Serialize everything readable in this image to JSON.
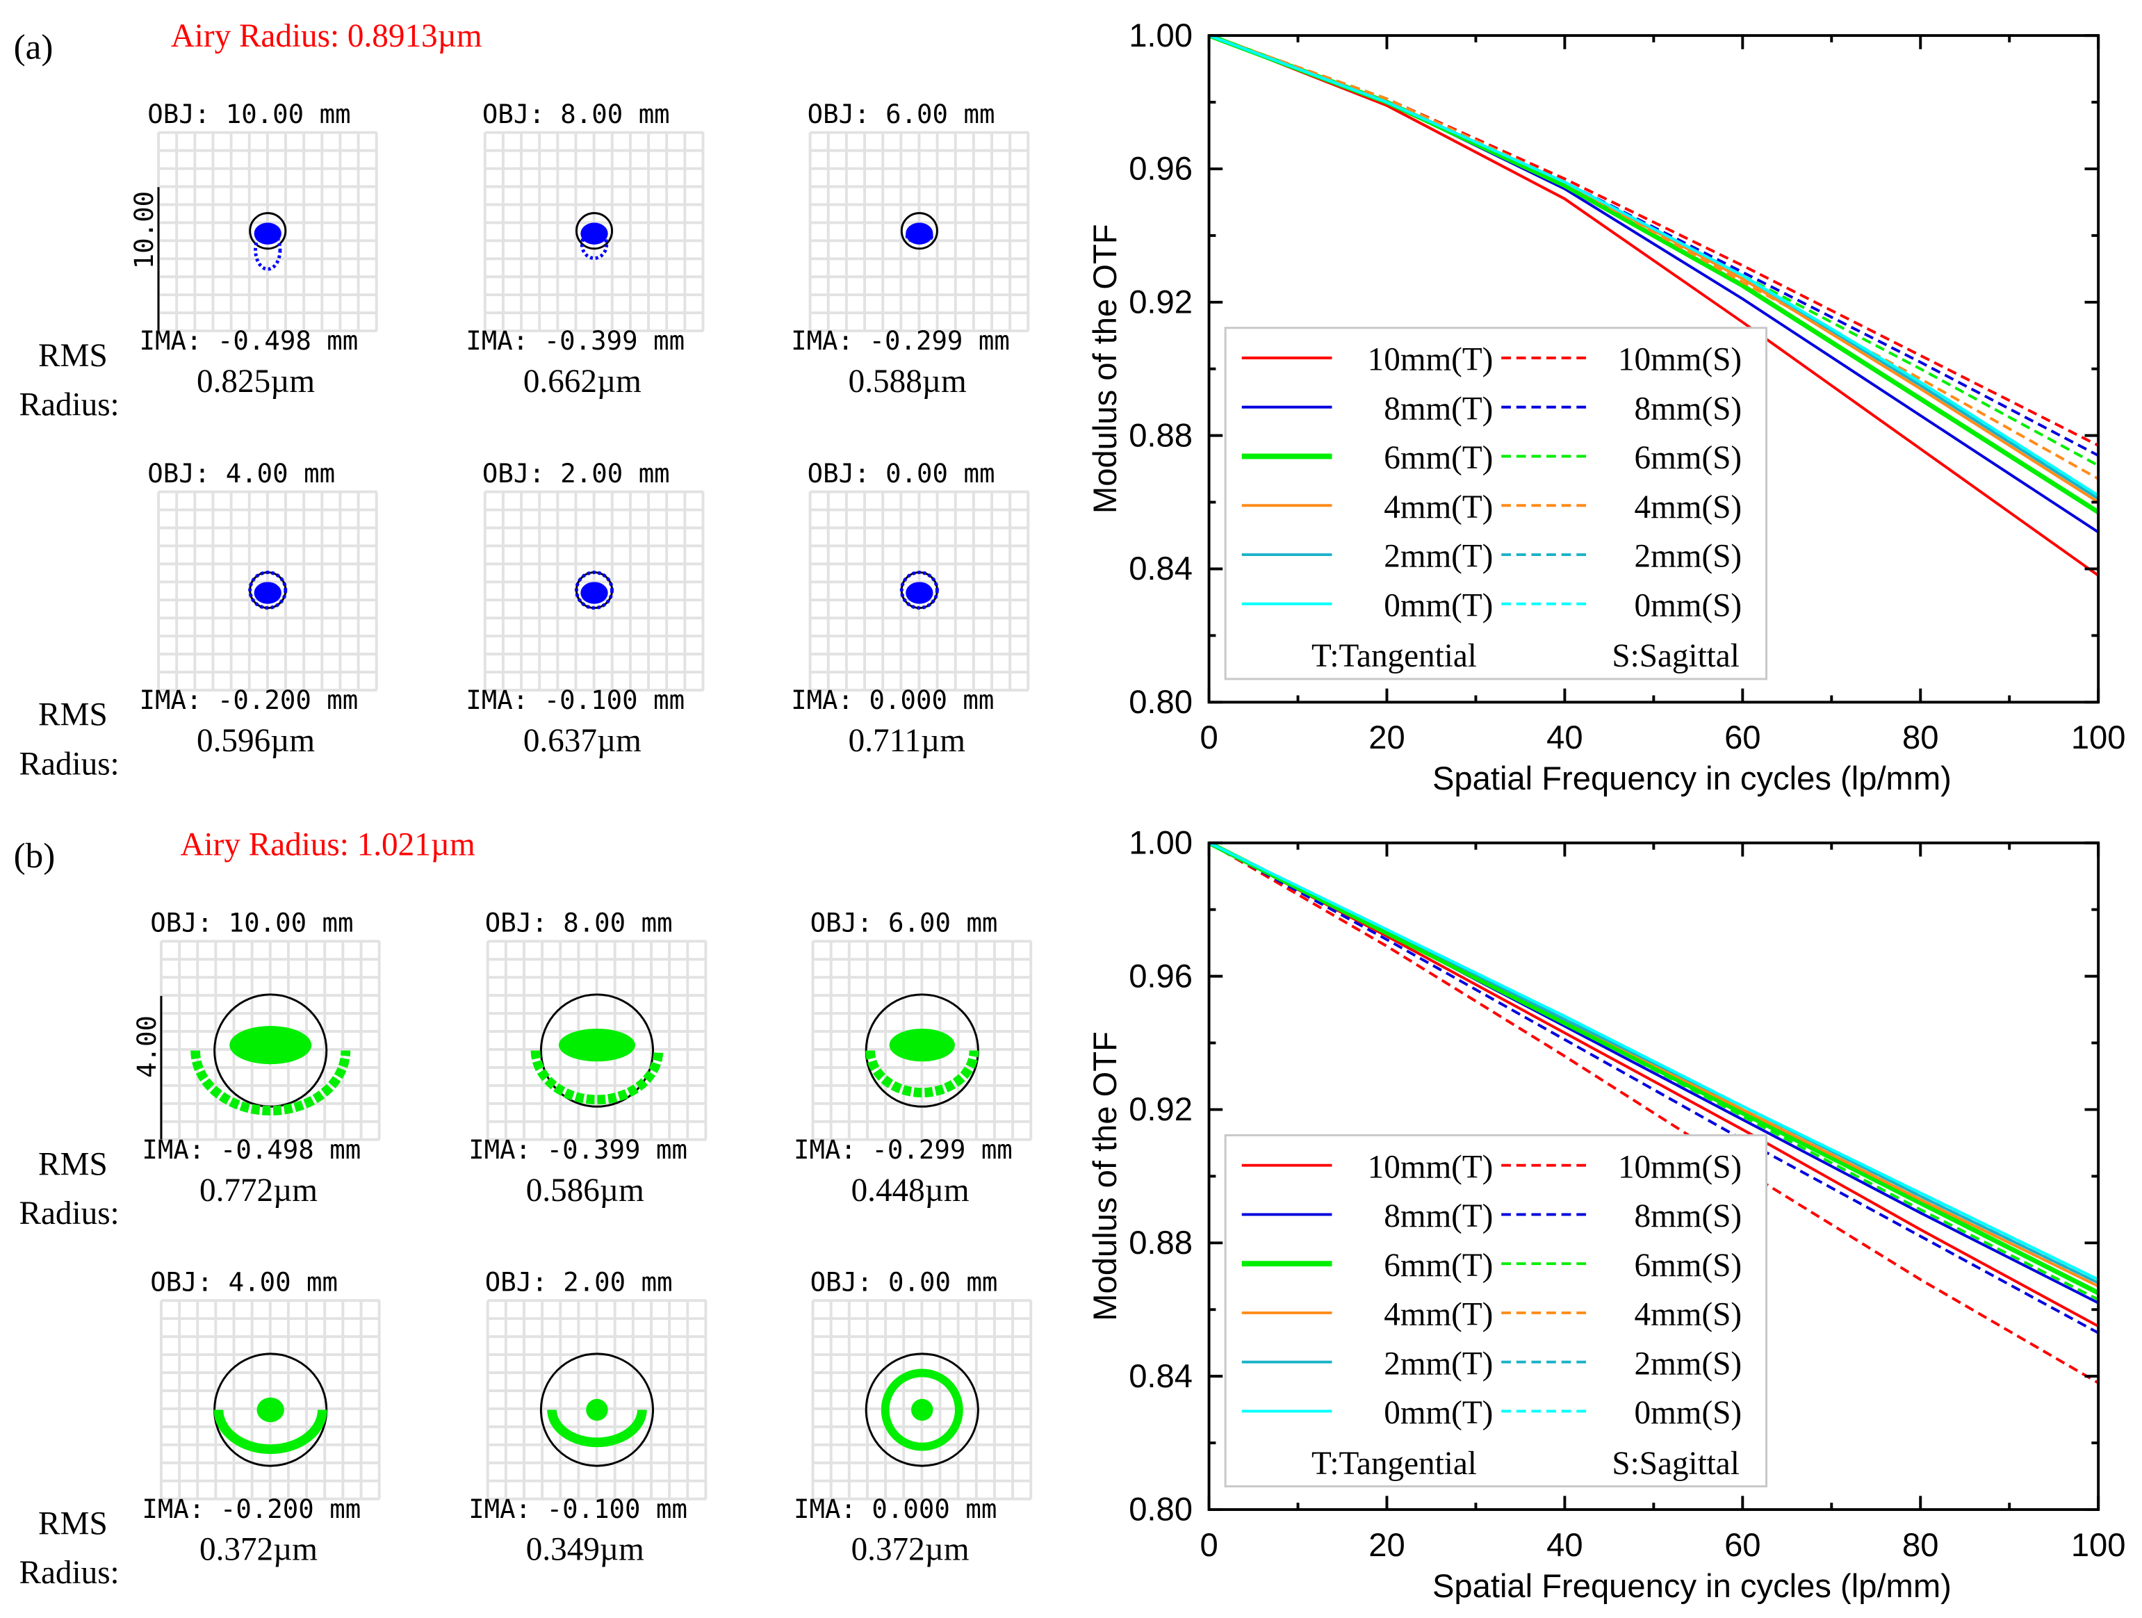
{
  "panels": [
    {
      "label": "(a)",
      "airy": "Airy Radius: 0.8913µm",
      "scale_label": "10.00",
      "rms_label": [
        "RMS",
        "Radius:"
      ],
      "spot_color": "#0000ff",
      "spots": [
        {
          "obj": "OBJ: 10.00 mm",
          "ima": "IMA: -0.498 mm",
          "rms": "0.825µm"
        },
        {
          "obj": "OBJ: 8.00 mm",
          "ima": "IMA: -0.399 mm",
          "rms": "0.662µm"
        },
        {
          "obj": "OBJ: 6.00 mm",
          "ima": "IMA: -0.299 mm",
          "rms": "0.588µm"
        },
        {
          "obj": "OBJ: 4.00 mm",
          "ima": "IMA: -0.200 mm",
          "rms": "0.596µm"
        },
        {
          "obj": "OBJ: 2.00 mm",
          "ima": "IMA: -0.100 mm",
          "rms": "0.637µm"
        },
        {
          "obj": "OBJ: 0.00 mm",
          "ima": "IMA: 0.000 mm",
          "rms": "0.711µm"
        }
      ]
    },
    {
      "label": "(b)",
      "airy": "Airy Radius: 1.021µm",
      "scale_label": "4.00",
      "rms_label": [
        "RMS",
        "Radius:"
      ],
      "spot_color": "#00ee00",
      "spots": [
        {
          "obj": "OBJ: 10.00 mm",
          "ima": "IMA: -0.498 mm",
          "rms": "0.772µm"
        },
        {
          "obj": "OBJ: 8.00 mm",
          "ima": "IMA: -0.399 mm",
          "rms": "0.586µm"
        },
        {
          "obj": "OBJ: 6.00 mm",
          "ima": "IMA: -0.299 mm",
          "rms": "0.448µm"
        },
        {
          "obj": "OBJ: 4.00 mm",
          "ima": "IMA: -0.200 mm",
          "rms": "0.372µm"
        },
        {
          "obj": "OBJ: 2.00 mm",
          "ima": "IMA: -0.100 mm",
          "rms": "0.349µm"
        },
        {
          "obj": "OBJ: 0.00 mm",
          "ima": "IMA: 0.000 mm",
          "rms": "0.372µm"
        }
      ]
    }
  ],
  "chart_data": [
    {
      "type": "line",
      "title": "",
      "xlabel": "Spatial Frequency in cycles (lp/mm)",
      "ylabel": "Modulus of the OTF",
      "xlim": [
        0,
        100
      ],
      "ylim": [
        0.8,
        1.0
      ],
      "xticks": [
        "0",
        "20",
        "40",
        "60",
        "80",
        "100"
      ],
      "yticks": [
        "0.80",
        "0.84",
        "0.88",
        "0.92",
        "0.96",
        "1.00"
      ],
      "legend_position": "bottom-left",
      "legend_notes": [
        "T:Tangential",
        "S:Sagittal"
      ],
      "x": [
        0,
        20,
        40,
        60,
        80,
        100
      ],
      "series": [
        {
          "name": "10mm(T)",
          "color": "#ff0000",
          "dash": false,
          "values": [
            1.0,
            0.979,
            0.951,
            0.914,
            0.876,
            0.838
          ]
        },
        {
          "name": "10mm(S)",
          "color": "#ff0000",
          "dash": true,
          "values": [
            1.0,
            0.981,
            0.957,
            0.931,
            0.904,
            0.877
          ]
        },
        {
          "name": "8mm(T)",
          "color": "#0000dd",
          "dash": false,
          "values": [
            1.0,
            0.98,
            0.954,
            0.921,
            0.886,
            0.851
          ]
        },
        {
          "name": "8mm(S)",
          "color": "#0000dd",
          "dash": true,
          "values": [
            1.0,
            0.981,
            0.956,
            0.929,
            0.902,
            0.874
          ]
        },
        {
          "name": "6mm(T)",
          "color": "#00ee00",
          "dash": false,
          "values": [
            1.0,
            0.98,
            0.955,
            0.925,
            0.891,
            0.857
          ]
        },
        {
          "name": "6mm(S)",
          "color": "#00ee00",
          "dash": true,
          "values": [
            1.0,
            0.981,
            0.956,
            0.928,
            0.9,
            0.871
          ]
        },
        {
          "name": "4mm(T)",
          "color": "#ff8c1a",
          "dash": false,
          "values": [
            1.0,
            0.98,
            0.956,
            0.927,
            0.894,
            0.86
          ]
        },
        {
          "name": "4mm(S)",
          "color": "#ff8c1a",
          "dash": true,
          "values": [
            1.0,
            0.981,
            0.956,
            0.926,
            0.897,
            0.867
          ]
        },
        {
          "name": "2mm(T)",
          "color": "#1ab2c8",
          "dash": false,
          "values": [
            1.0,
            0.98,
            0.956,
            0.928,
            0.895,
            0.861
          ]
        },
        {
          "name": "2mm(S)",
          "color": "#1ab2c8",
          "dash": true,
          "values": [
            1.0,
            0.98,
            0.956,
            0.928,
            0.895,
            0.862
          ]
        },
        {
          "name": "0mm(T)",
          "color": "#00ffff",
          "dash": false,
          "values": [
            1.0,
            0.98,
            0.956,
            0.928,
            0.896,
            0.862
          ]
        },
        {
          "name": "0mm(S)",
          "color": "#00ffff",
          "dash": true,
          "values": [
            1.0,
            0.98,
            0.956,
            0.928,
            0.896,
            0.862
          ]
        }
      ]
    },
    {
      "type": "line",
      "title": "",
      "xlabel": "Spatial Frequency in cycles (lp/mm)",
      "ylabel": "Modulus of the OTF",
      "xlim": [
        0,
        100
      ],
      "ylim": [
        0.8,
        1.0
      ],
      "xticks": [
        "0",
        "20",
        "40",
        "60",
        "80",
        "100"
      ],
      "yticks": [
        "0.80",
        "0.84",
        "0.88",
        "0.92",
        "0.96",
        "1.00"
      ],
      "legend_position": "bottom-left",
      "legend_notes": [
        "T:Tangential",
        "S:Sagittal"
      ],
      "x": [
        0,
        20,
        40,
        60,
        80,
        100
      ],
      "series": [
        {
          "name": "10mm(T)",
          "color": "#ff0000",
          "dash": false,
          "values": [
            1.0,
            0.972,
            0.943,
            0.914,
            0.884,
            0.855
          ]
        },
        {
          "name": "10mm(S)",
          "color": "#ff0000",
          "dash": true,
          "values": [
            1.0,
            0.969,
            0.936,
            0.902,
            0.869,
            0.838
          ]
        },
        {
          "name": "8mm(T)",
          "color": "#0000dd",
          "dash": false,
          "values": [
            1.0,
            0.973,
            0.945,
            0.917,
            0.889,
            0.862
          ]
        },
        {
          "name": "8mm(S)",
          "color": "#0000dd",
          "dash": true,
          "values": [
            1.0,
            0.971,
            0.941,
            0.911,
            0.882,
            0.853
          ]
        },
        {
          "name": "6mm(T)",
          "color": "#00ee00",
          "dash": false,
          "values": [
            1.0,
            0.973,
            0.946,
            0.919,
            0.892,
            0.865
          ]
        },
        {
          "name": "6mm(S)",
          "color": "#00ee00",
          "dash": true,
          "values": [
            1.0,
            0.973,
            0.946,
            0.918,
            0.89,
            0.863
          ]
        },
        {
          "name": "4mm(T)",
          "color": "#ff8c1a",
          "dash": false,
          "values": [
            1.0,
            0.974,
            0.947,
            0.92,
            0.893,
            0.867
          ]
        },
        {
          "name": "4mm(S)",
          "color": "#ff8c1a",
          "dash": true,
          "values": [
            1.0,
            0.974,
            0.947,
            0.92,
            0.893,
            0.867
          ]
        },
        {
          "name": "2mm(T)",
          "color": "#1ab2c8",
          "dash": false,
          "values": [
            1.0,
            0.974,
            0.947,
            0.921,
            0.894,
            0.868
          ]
        },
        {
          "name": "2mm(S)",
          "color": "#1ab2c8",
          "dash": true,
          "values": [
            1.0,
            0.974,
            0.947,
            0.921,
            0.894,
            0.868
          ]
        },
        {
          "name": "0mm(T)",
          "color": "#00ffff",
          "dash": false,
          "values": [
            1.0,
            0.974,
            0.948,
            0.921,
            0.895,
            0.869
          ]
        },
        {
          "name": "0mm(S)",
          "color": "#00ffff",
          "dash": true,
          "values": [
            1.0,
            0.974,
            0.948,
            0.921,
            0.895,
            0.869
          ]
        }
      ]
    }
  ]
}
